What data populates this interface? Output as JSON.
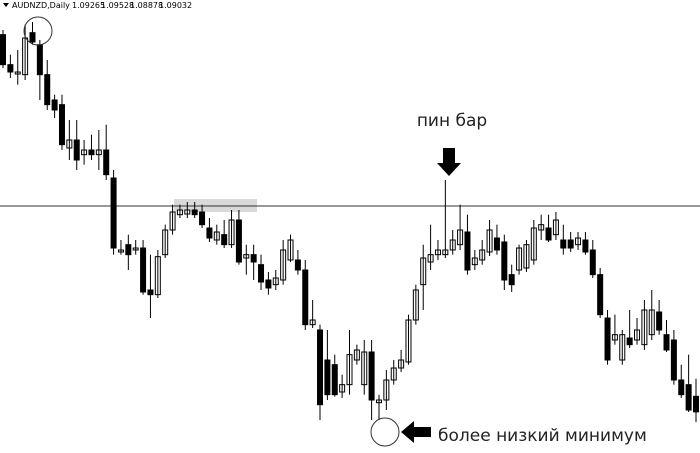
{
  "chart_data": {
    "type": "candlestick",
    "title": "AUDNZD,Daily",
    "open": [
      1.1469,
      1.1424,
      1.141,
      1.1409,
      1.1472,
      1.1454,
      1.1409,
      1.1371,
      1.1364,
      1.1299,
      1.1311,
      1.1289,
      1.1296,
      1.1289,
      1.1296,
      1.1254,
      1.1143,
      1.1154,
      1.1146,
      1.1149,
      1.1086,
      1.1079,
      1.1139,
      1.1176,
      1.1199,
      1.12,
      1.1206,
      1.1203,
      1.1179,
      1.1161,
      1.1169,
      1.1154,
      1.1191,
      1.1134,
      1.1139,
      1.1124,
      1.1101,
      1.1094,
      1.1101,
      1.1131,
      1.1131,
      1.1116,
      1.1034,
      1.1026,
      1.0981,
      1.0974,
      1.0933,
      1.0944,
      1.0981,
      1.0944,
      1.0993,
      1.0917,
      1.0921,
      1.0951,
      1.0969,
      1.0978,
      1.1041,
      1.1094,
      1.1128,
      1.1139,
      1.1139,
      1.1146,
      1.1154,
      1.1173,
      1.1124,
      1.1131,
      1.1143,
      1.1164,
      1.1158,
      1.1109,
      1.1116,
      1.1119,
      1.1131,
      1.1176,
      1.1179,
      1.1169,
      1.1161,
      1.1161,
      1.1154,
      1.1161,
      1.1146,
      1.1109,
      1.1044,
      1.1011,
      1.0981,
      1.1014,
      1.1011,
      1.1004,
      1.1019,
      1.1053,
      1.1019,
      1.1011,
      1.0951,
      1.0944,
      1.09265
    ],
    "high": [
      1.1476,
      1.1439,
      1.1446,
      1.1484,
      1.1488,
      1.1461,
      1.1431,
      1.1379,
      1.1379,
      1.1341,
      1.1341,
      1.1311,
      1.1319,
      1.1326,
      1.1334,
      1.1266,
      1.1161,
      1.1169,
      1.1161,
      1.1161,
      1.1139,
      1.1146,
      1.1184,
      1.1214,
      1.1214,
      1.1218,
      1.1218,
      1.1214,
      1.1194,
      1.1184,
      1.1191,
      1.1206,
      1.1206,
      1.1154,
      1.1154,
      1.1139,
      1.1113,
      1.1116,
      1.1161,
      1.1169,
      1.1146,
      1.1131,
      1.1071,
      1.1034,
      1.1026,
      1.0989,
      1.0959,
      1.1026,
      1.1004,
      1.1011,
      1.1011,
      1.0929,
      1.0966,
      1.0981,
      1.0996,
      1.1049,
      1.1094,
      1.1154,
      1.1184,
      1.1161,
      1.1251,
      1.1176,
      1.1214,
      1.1199,
      1.1146,
      1.1161,
      1.1191,
      1.1184,
      1.1169,
      1.1124,
      1.1154,
      1.1161,
      1.1191,
      1.1199,
      1.1199,
      1.1203,
      1.1184,
      1.1173,
      1.1173,
      1.1173,
      1.1161,
      1.1119,
      1.1056,
      1.1049,
      1.1026,
      1.1056,
      1.1044,
      1.1071,
      1.1086,
      1.1071,
      1.1041,
      1.1026,
      1.0974,
      1.0989,
      1.09528
    ],
    "low": [
      1.1419,
      1.1404,
      1.1394,
      1.1401,
      1.1454,
      1.1371,
      1.1356,
      1.1344,
      1.1296,
      1.1281,
      1.1266,
      1.1274,
      1.1281,
      1.1266,
      1.1251,
      1.1139,
      1.1139,
      1.1116,
      1.1139,
      1.1079,
      1.1044,
      1.1074,
      1.1134,
      1.1169,
      1.1194,
      1.1194,
      1.1194,
      1.1179,
      1.1158,
      1.1154,
      1.1149,
      1.1149,
      1.1124,
      1.1109,
      1.1101,
      1.1086,
      1.1079,
      1.1086,
      1.1094,
      1.1128,
      1.1109,
      1.1026,
      1.1029,
      1.0891,
      1.0921,
      1.0926,
      1.0924,
      1.0929,
      1.0974,
      1.0929,
      1.0891,
      1.0891,
      1.0906,
      1.0944,
      1.0963,
      1.0974,
      1.1034,
      1.1056,
      1.1116,
      1.1131,
      1.1134,
      1.1139,
      1.1146,
      1.1109,
      1.1116,
      1.1124,
      1.1137,
      1.1139,
      1.1086,
      1.1083,
      1.1109,
      1.1113,
      1.1124,
      1.1161,
      1.1158,
      1.1161,
      1.1139,
      1.1143,
      1.1146,
      1.1139,
      1.1104,
      1.1044,
      1.0974,
      1.1004,
      1.0974,
      1.0999,
      1.1004,
      1.0996,
      1.1011,
      1.1019,
      1.0993,
      1.0944,
      1.0924,
      1.0903,
      1.08878
    ],
    "close": [
      1.1424,
      1.1413,
      1.1413,
      1.1464,
      1.1458,
      1.1409,
      1.1364,
      1.1356,
      1.1304,
      1.1311,
      1.1281,
      1.1296,
      1.1289,
      1.1296,
      1.1259,
      1.1149,
      1.1146,
      1.1139,
      1.1149,
      1.1083,
      1.1079,
      1.1136,
      1.1176,
      1.1203,
      1.1206,
      1.1206,
      1.1199,
      1.1184,
      1.1164,
      1.1173,
      1.1154,
      1.1191,
      1.1128,
      1.1139,
      1.1128,
      1.1098,
      1.1089,
      1.1104,
      1.1146,
      1.1161,
      1.1116,
      1.1034,
      1.1041,
      1.0914,
      1.0929,
      1.0929,
      1.0944,
      1.0989,
      1.0996,
      1.0993,
      1.0921,
      1.0921,
      1.0951,
      1.0969,
      1.0981,
      1.1041,
      1.1086,
      1.1134,
      1.1139,
      1.1146,
      1.1146,
      1.1161,
      1.1176,
      1.1116,
      1.1134,
      1.1146,
      1.1176,
      1.1146,
      1.1101,
      1.1094,
      1.1149,
      1.1154,
      1.1179,
      1.1184,
      1.1161,
      1.1191,
      1.1149,
      1.1149,
      1.1164,
      1.1143,
      1.1109,
      1.1049,
      1.0981,
      1.1019,
      1.1019,
      1.1004,
      1.1026,
      1.1056,
      1.1056,
      1.1026,
      1.0996,
      1.0951,
      1.0929,
      1.0906,
      1.09032
    ],
    "ylim": [
      1.08415,
      1.1503
    ],
    "hline": 1.1212,
    "up_color": "#ffffff",
    "down_color": "#000000",
    "annotations": [
      {
        "text": "пин бар"
      },
      {
        "text": "более низкий минимум"
      }
    ]
  }
}
